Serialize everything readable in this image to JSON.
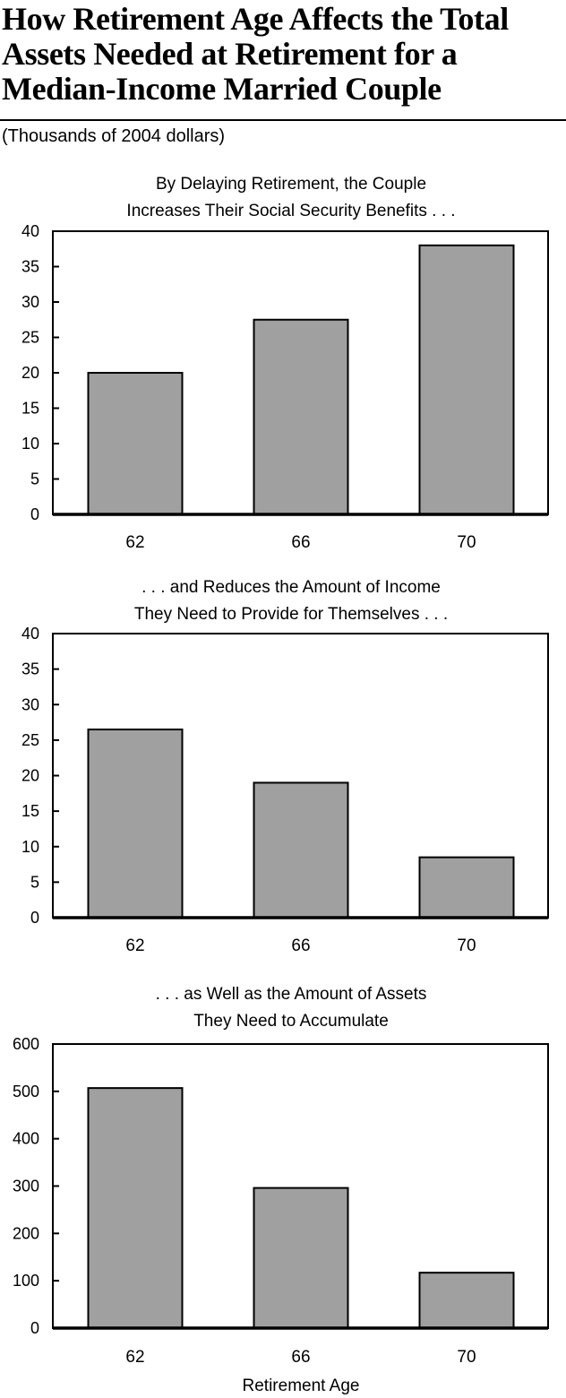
{
  "header": {
    "title": "How Retirement Age Affects the Total Assets Needed at Retirement for a Median-Income Married Couple",
    "subtitle": "(Thousands of 2004 dollars)"
  },
  "colors": {
    "bar_fill": "#a0a0a0",
    "stroke": "#000000"
  },
  "chart_data": [
    {
      "type": "bar",
      "title_lines": [
        "By Delaying Retirement, the Couple",
        "Increases Their Social Security Benefits . . ."
      ],
      "categories": [
        "62",
        "66",
        "70"
      ],
      "values": [
        20,
        27.5,
        38
      ],
      "ylim": [
        0,
        40
      ],
      "yticks": [
        0,
        5,
        10,
        15,
        20,
        25,
        30,
        35,
        40
      ],
      "xlabel": "",
      "ylabel": "",
      "grid": false
    },
    {
      "type": "bar",
      "title_lines": [
        ". . . and Reduces the Amount of Income",
        "They Need to Provide for Themselves . . ."
      ],
      "categories": [
        "62",
        "66",
        "70"
      ],
      "values": [
        26.5,
        19,
        8.5
      ],
      "ylim": [
        0,
        40
      ],
      "yticks": [
        0,
        5,
        10,
        15,
        20,
        25,
        30,
        35,
        40
      ],
      "xlabel": "",
      "ylabel": "",
      "grid": false
    },
    {
      "type": "bar",
      "title_lines": [
        ". . . as Well as the Amount of Assets",
        "They Need to Accumulate"
      ],
      "categories": [
        "62",
        "66",
        "70"
      ],
      "values": [
        507,
        296,
        117
      ],
      "ylim": [
        0,
        600
      ],
      "yticks": [
        0,
        100,
        200,
        300,
        400,
        500,
        600
      ],
      "xlabel": "Retirement Age",
      "ylabel": "",
      "grid": false
    }
  ]
}
